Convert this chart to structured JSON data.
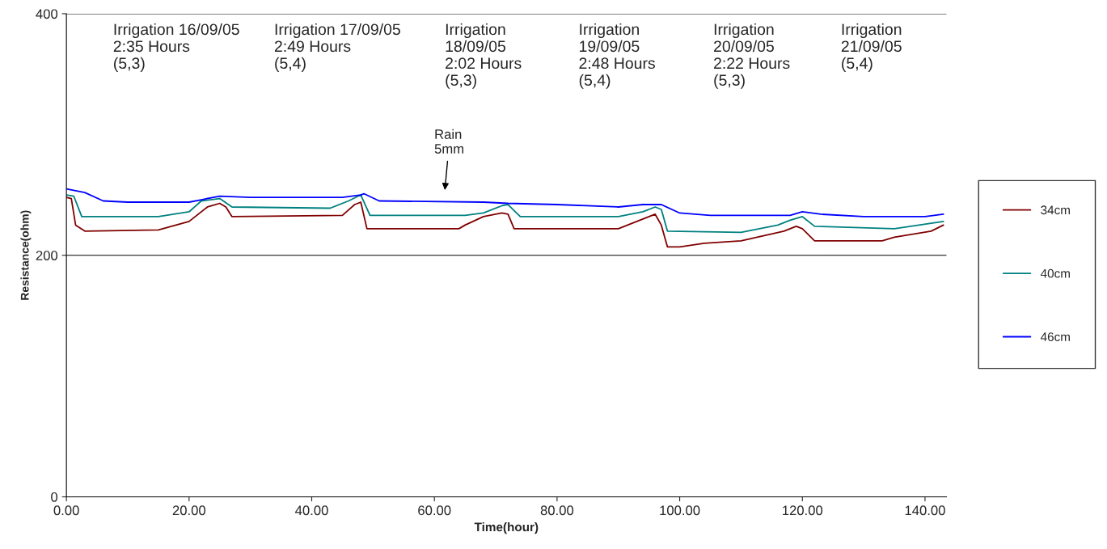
{
  "chart_data": {
    "type": "line",
    "xlabel": "Time(hour)",
    "ylabel": "Resistance(ohm)",
    "xlim": [
      0,
      143.5
    ],
    "ylim": [
      0,
      400
    ],
    "yticks": [
      0,
      200,
      400
    ],
    "xticks": [
      {
        "value": 0,
        "label": "0.00"
      },
      {
        "value": 20,
        "label": "20.00"
      },
      {
        "value": 40,
        "label": "40.00"
      },
      {
        "value": 60,
        "label": "60.00"
      },
      {
        "value": 80,
        "label": "80.00"
      },
      {
        "value": 100,
        "label": "100.00"
      },
      {
        "value": 120,
        "label": "120.00"
      },
      {
        "value": 140,
        "label": "140.00"
      }
    ],
    "grid": "y",
    "legend": "right",
    "line_style": "solid",
    "series": [
      {
        "name": "34cm",
        "color": "#800000",
        "x": [
          0,
          0.8,
          1.5,
          3,
          15,
          20,
          23,
          25,
          26,
          27,
          45,
          47,
          48,
          49,
          64,
          65,
          68,
          71,
          72,
          73,
          90,
          95,
          96,
          97,
          98,
          100,
          104,
          110,
          117,
          119,
          120,
          122,
          133,
          135,
          141,
          143
        ],
        "values": [
          248,
          247,
          225,
          220,
          221,
          228,
          240,
          243,
          240,
          232,
          233,
          242,
          244,
          222,
          222,
          225,
          232,
          235,
          234,
          222,
          222,
          232,
          234,
          225,
          207,
          207,
          210,
          212,
          220,
          224,
          222,
          212,
          212,
          215,
          220,
          225
        ]
      },
      {
        "name": "40cm",
        "color": "#008080",
        "x": [
          0,
          1.2,
          2.5,
          15,
          20,
          22,
          25,
          27,
          43,
          46,
          48,
          49.5,
          65,
          68,
          71,
          72,
          74,
          90,
          94,
          96,
          97,
          98,
          110,
          116,
          118,
          120,
          122,
          135,
          143
        ],
        "values": [
          250,
          249,
          232,
          232,
          236,
          245,
          247,
          240,
          239,
          245,
          250,
          233,
          233,
          235,
          241,
          242,
          232,
          232,
          236,
          240,
          238,
          220,
          219,
          225,
          229,
          232,
          224,
          222,
          228
        ]
      },
      {
        "name": "46cm",
        "color": "#0000ff",
        "x": [
          0,
          1,
          3,
          6,
          10,
          20,
          22,
          25,
          30,
          45,
          48,
          48.5,
          51,
          68,
          72,
          80,
          90,
          94,
          97,
          100,
          105,
          118,
          120,
          123,
          130,
          140,
          143
        ],
        "values": [
          255,
          254,
          252,
          245,
          244,
          244,
          246,
          249,
          248,
          248,
          250,
          251,
          245,
          244,
          243,
          242,
          240,
          242,
          242,
          235,
          233,
          233,
          236,
          234,
          232,
          232,
          234
        ]
      }
    ],
    "annotations": [
      "Irrigation 16/09/05\n2:35 Hours\n(5,3)",
      "Irrigation 17/09/05\n2:49 Hours\n(5,4)",
      "Irrigation\n18/09/05\n2:02 Hours\n(5,3)",
      "Irrigation\n19/09/05\n2:48 Hours\n(5,4)",
      "Irrigation\n20/09/05\n2:22 Hours\n(5,3)",
      "Irrigation\n21/09/05\n(5,4)",
      "Rain\n5mm"
    ]
  }
}
